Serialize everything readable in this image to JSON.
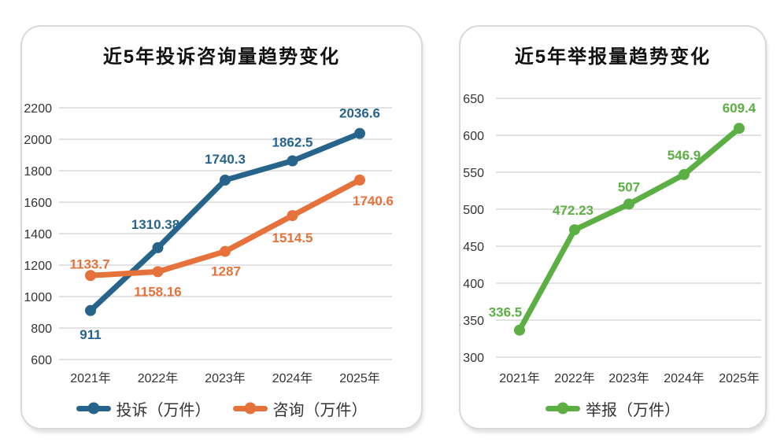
{
  "chart_data": [
    {
      "type": "line",
      "title": "近5年投诉咨询量趋势变化",
      "categories": [
        "2021年",
        "2022年",
        "2023年",
        "2024年",
        "2025年"
      ],
      "series": [
        {
          "name": "投诉（万件）",
          "color": "#27648B",
          "values": [
            911,
            1310.38,
            1740.3,
            1862.5,
            2036.6
          ]
        },
        {
          "name": "咨询（万件）",
          "color": "#E5723A",
          "values": [
            1133.7,
            1158.16,
            1287,
            1514.5,
            1740.6
          ]
        }
      ],
      "ylim": [
        600,
        2200
      ],
      "ystep": 200,
      "grid": true,
      "data_labels": true,
      "legend_position": "bottom"
    },
    {
      "type": "line",
      "title": "近5年举报量趋势变化",
      "categories": [
        "2021年",
        "2022年",
        "2023年",
        "2024年",
        "2025年"
      ],
      "series": [
        {
          "name": "举报（万件）",
          "color": "#5BAF43",
          "values": [
            336.5,
            472.23,
            507,
            546.9,
            609.4
          ]
        }
      ],
      "ylim": [
        300,
        650
      ],
      "ystep": 50,
      "grid": true,
      "data_labels": true,
      "legend_position": "bottom"
    }
  ],
  "styles": {
    "grid_color": "#D9D9D9",
    "axis_text_color": "#333333",
    "title_color": "#111111",
    "card_border_color": "#D9D9D9",
    "complaints_color": "#27648B",
    "consultations_color": "#E5723A",
    "reports_color": "#5BAF43"
  }
}
